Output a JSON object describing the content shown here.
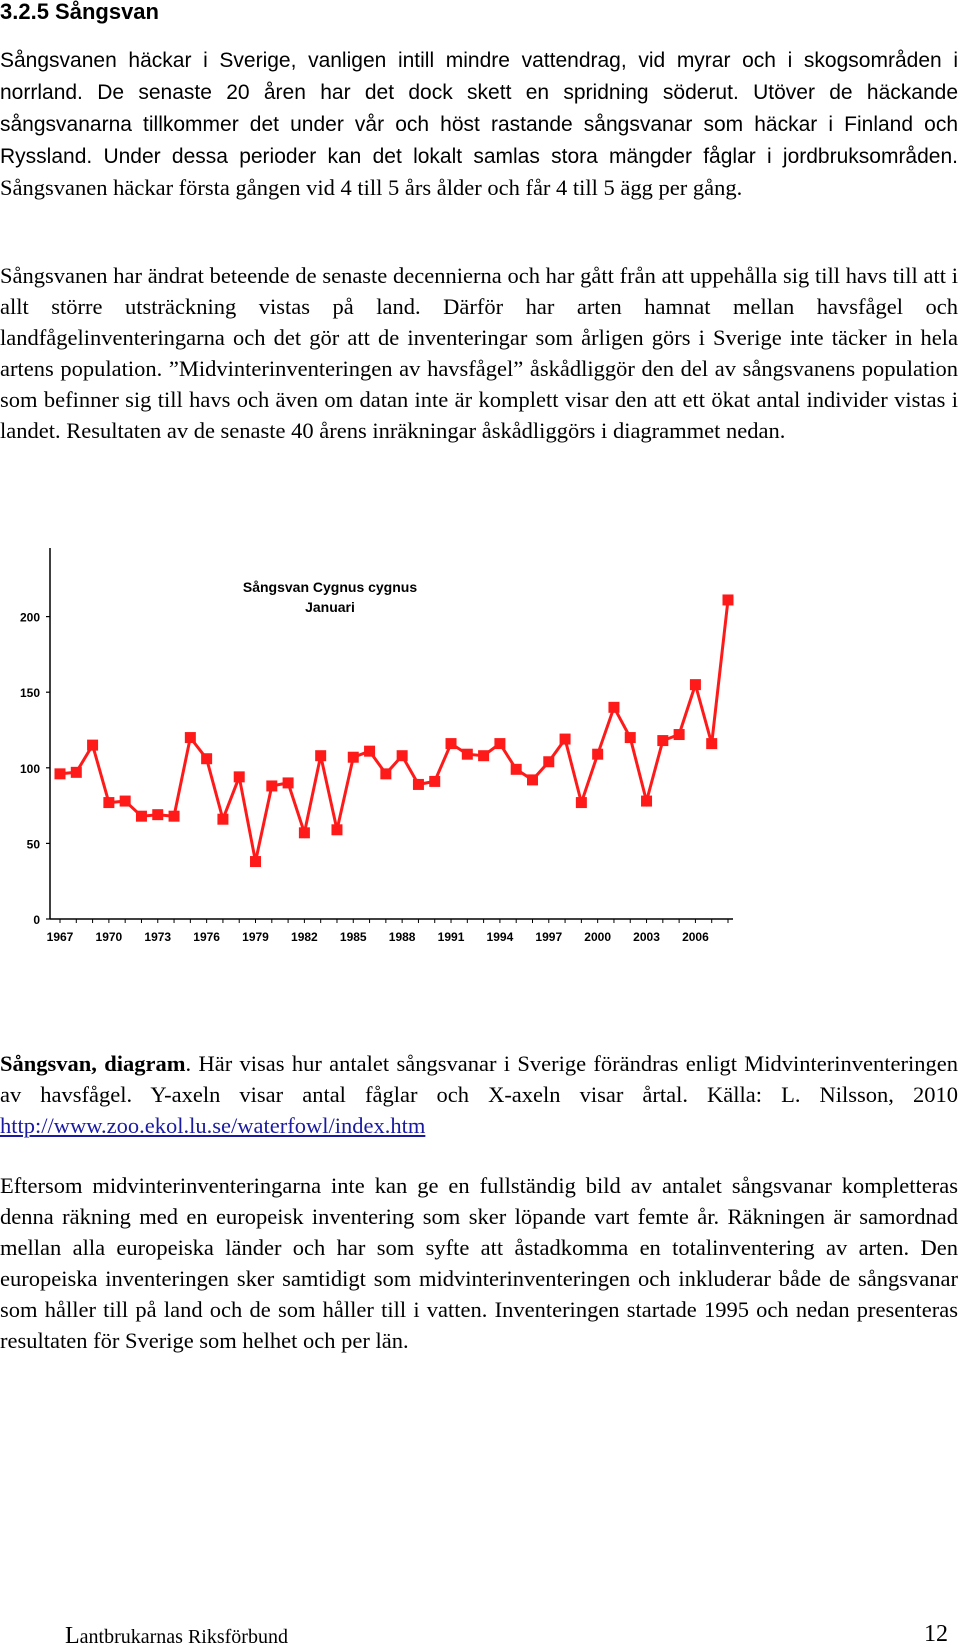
{
  "heading": "3.2.5 Sångsvan",
  "paragraph1": {
    "sans_part": "Sångsvanen häckar i Sverige, vanligen intill mindre vattendrag, vid myrar och i skogsområden i norrland. De senaste 20 åren har det dock skett en spridning söderut. Utöver de häckande sångsvanarna tillkommer det under vår och höst rastande sångsvanar som häckar i Finland och Ryssland. Under dessa perioder kan det lokalt samlas stora mängder fåglar i jordbruksområden.",
    "serif_part": "Sångsvanen häckar första gången vid 4 till 5 års ålder och får 4 till 5 ägg per gång."
  },
  "paragraph2": "Sångsvanen har ändrat beteende de senaste decennierna och har gått från att uppehålla sig till havs till att i allt större utsträckning vistas på land. Därför har arten hamnat mellan havsfågel och landfågelinventeringarna och det gör att de inventeringar som årligen görs i Sverige inte täcker in hela artens population. ”Midvinterinventeringen av havsfågel” åskådliggör den del av sångsvanens population som befinner sig till havs och även om datan inte är komplett visar den att ett ökat antal individer vistas i landet. Resultaten av de senaste 40 årens inräkningar åskådliggörs i diagrammet nedan.",
  "caption": {
    "bold": "Sångsvan, diagram",
    "text": ". Här visas hur antalet sångsvanar i Sverige förändras enligt Midvinterinventeringen av havsfågel. Y-axeln visar antal fåglar och X-axeln visar årtal. Källa: L. Nilsson, 2010 ",
    "link": "http://www.zoo.ekol.lu.se/waterfowl/index.htm"
  },
  "paragraph3": "Eftersom midvinterinventeringarna inte kan ge en fullständig bild av antalet sångsvanar kompletteras denna räkning med en europeisk inventering som sker löpande vart femte år. Räkningen är samordnad mellan alla europeiska länder och har som syfte att åstadkomma en totalinventering av arten. Den europeiska inventeringen sker samtidigt som midvinterinventeringen och inkluderar både de sångsvanar som håller till på land och de som håller till i vatten. Inventeringen startade 1995 och nedan presenteras resultaten för Sverige som helhet och per län.",
  "footer": {
    "org_first": "L",
    "org_rest": "antbrukarnas Riksförbund",
    "page_number": "12"
  },
  "chart_data": {
    "type": "line",
    "title": "Sångsvan Cygnus cygnus",
    "subtitle": "Januari",
    "xlabel": "",
    "ylabel": "",
    "ylim": [
      0,
      250
    ],
    "xlim": [
      1967,
      2008
    ],
    "yticks": [
      0,
      50,
      100,
      150,
      200,
      250
    ],
    "xtick_labels": [
      "1967",
      "1970",
      "1973",
      "1976",
      "1979",
      "1982",
      "1985",
      "1988",
      "1991",
      "1994",
      "1997",
      "2000",
      "2003",
      "2006"
    ],
    "grid": false,
    "legend": "none",
    "color": "#ff1a1a",
    "marker": "square",
    "x": [
      1967,
      1968,
      1969,
      1970,
      1971,
      1972,
      1973,
      1974,
      1975,
      1976,
      1977,
      1978,
      1979,
      1980,
      1981,
      1982,
      1983,
      1984,
      1985,
      1986,
      1987,
      1988,
      1989,
      1990,
      1991,
      1992,
      1993,
      1994,
      1995,
      1996,
      1997,
      1998,
      1999,
      2000,
      2001,
      2002,
      2003,
      2004,
      2005,
      2006,
      2007,
      2008
    ],
    "y": [
      96,
      97,
      115,
      77,
      78,
      68,
      69,
      68,
      120,
      106,
      66,
      94,
      38,
      88,
      90,
      57,
      108,
      59,
      107,
      111,
      96,
      108,
      89,
      91,
      116,
      109,
      108,
      116,
      99,
      92,
      104,
      119,
      77,
      109,
      140,
      120,
      78,
      118,
      122,
      155,
      116,
      211
    ]
  }
}
